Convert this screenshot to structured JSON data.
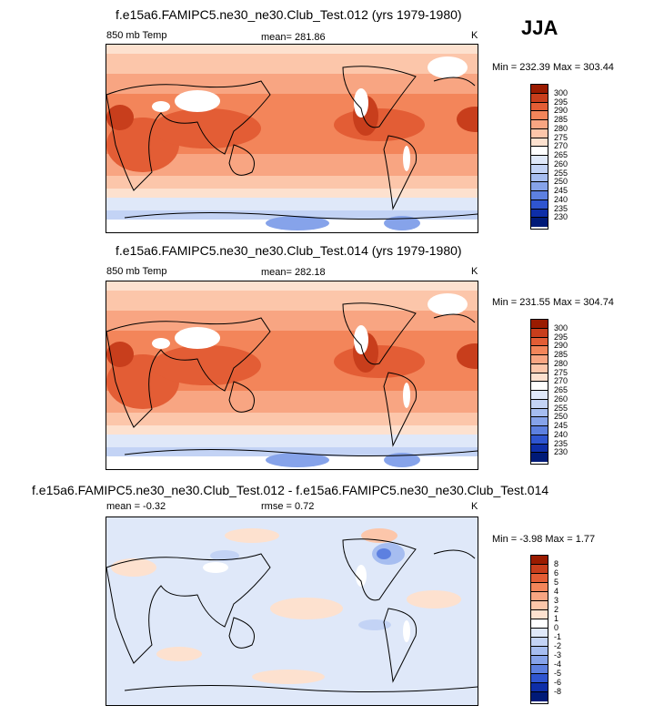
{
  "season": "JJA",
  "chart_data": [
    {
      "type": "heatmap",
      "title": "f.e15a6.FAMIPC5.ne30_ne30.Club_Test.012 (yrs 1979-1980)",
      "left_label": "850 mb Temp",
      "center_label": "mean= 281.86",
      "units": "K",
      "minmax": "Min = 232.39 Max = 303.44",
      "min": 232.39,
      "max": 303.44,
      "levels": [
        "300",
        "295",
        "290",
        "285",
        "280",
        "275",
        "270",
        "265",
        "260",
        "255",
        "250",
        "245",
        "240",
        "235",
        "230"
      ],
      "colors": [
        "#9a1b00",
        "#c83e1c",
        "#e35d35",
        "#f3855a",
        "#f8a582",
        "#fcc6aa",
        "#fde1cf",
        "#ffffff",
        "#dfe8f9",
        "#c3d3f5",
        "#a6bdf0",
        "#86a3ea",
        "#5d80e0",
        "#2f55d0",
        "#0e2ea8",
        "#001a78"
      ]
    },
    {
      "type": "heatmap",
      "title": "f.e15a6.FAMIPC5.ne30_ne30.Club_Test.014 (yrs 1979-1980)",
      "left_label": "850 mb Temp",
      "center_label": "mean= 282.18",
      "units": "K",
      "minmax": "Min = 231.55 Max = 304.74",
      "min": 231.55,
      "max": 304.74,
      "levels": [
        "300",
        "295",
        "290",
        "285",
        "280",
        "275",
        "270",
        "265",
        "260",
        "255",
        "250",
        "245",
        "240",
        "235",
        "230"
      ],
      "colors": [
        "#9a1b00",
        "#c83e1c",
        "#e35d35",
        "#f3855a",
        "#f8a582",
        "#fcc6aa",
        "#fde1cf",
        "#ffffff",
        "#dfe8f9",
        "#c3d3f5",
        "#a6bdf0",
        "#86a3ea",
        "#5d80e0",
        "#2f55d0",
        "#0e2ea8",
        "#001a78"
      ]
    },
    {
      "type": "heatmap",
      "title": "f.e15a6.FAMIPC5.ne30_ne30.Club_Test.012 - f.e15a6.FAMIPC5.ne30_ne30.Club_Test.014",
      "left_label": "mean =  -0.32",
      "center_label": "rmse =  0.72",
      "units": "K",
      "minmax": "Min = -3.98 Max =  1.77",
      "min": -3.98,
      "max": 1.77,
      "levels": [
        "8",
        "6",
        "5",
        "4",
        "3",
        "2",
        "1",
        "0",
        "-1",
        "-2",
        "-3",
        "-4",
        "-5",
        "-6",
        "-8"
      ],
      "colors": [
        "#9a1b00",
        "#c83e1c",
        "#e35d35",
        "#f3855a",
        "#f8a582",
        "#fcc6aa",
        "#fde1cf",
        "#ffffff",
        "#dfe8f9",
        "#c3d3f5",
        "#a6bdf0",
        "#86a3ea",
        "#5d80e0",
        "#2f55d0",
        "#0e2ea8",
        "#001a78"
      ]
    }
  ]
}
